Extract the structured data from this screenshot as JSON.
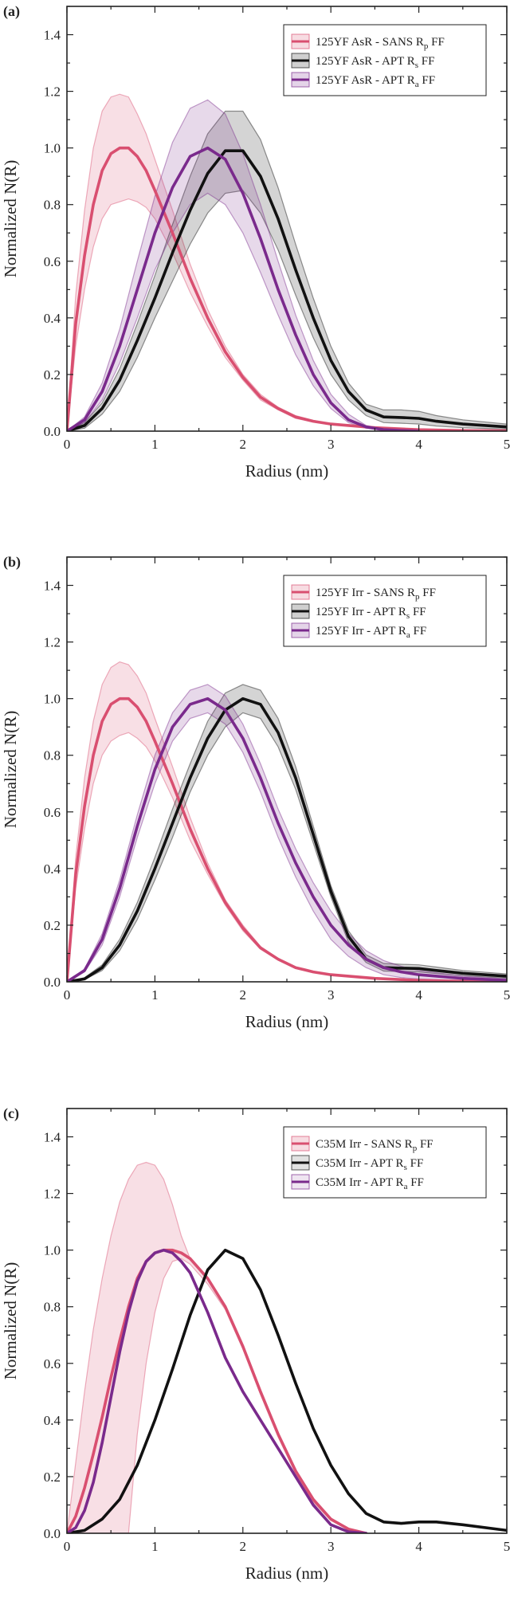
{
  "figure": {
    "panels": [
      "(a)",
      "(b)",
      "(c)"
    ]
  },
  "chart_data": [
    {
      "type": "line",
      "panel_label": "(a)",
      "xlabel": "Radius (nm)",
      "ylabel": "Normalized N(R)",
      "xlim": [
        0,
        5
      ],
      "ylim": [
        0,
        1.5
      ],
      "x_ticks": [
        "0",
        "1",
        "2",
        "3",
        "4",
        "5"
      ],
      "y_ticks": [
        "0.0",
        "0.2",
        "0.4",
        "0.6",
        "0.8",
        "1.0",
        "1.2",
        "1.4"
      ],
      "legend_position": "top-right",
      "series": [
        {
          "name": "125YF AsR - SANS R",
          "name_sub": "p",
          "name_suffix": " FF",
          "color": "#d94f70",
          "x": [
            0,
            0.1,
            0.2,
            0.3,
            0.4,
            0.5,
            0.6,
            0.7,
            0.8,
            0.9,
            1.0,
            1.2,
            1.4,
            1.6,
            1.8,
            2.0,
            2.2,
            2.4,
            2.6,
            2.8,
            3.0,
            3.5,
            4.0,
            4.5,
            5.0
          ],
          "y": [
            0.0,
            0.38,
            0.62,
            0.8,
            0.92,
            0.98,
            1.0,
            1.0,
            0.97,
            0.92,
            0.85,
            0.7,
            0.54,
            0.4,
            0.28,
            0.19,
            0.12,
            0.08,
            0.05,
            0.035,
            0.025,
            0.012,
            0.005,
            0.002,
            0.001
          ],
          "band_upper": [
            0.0,
            0.48,
            0.78,
            1.0,
            1.13,
            1.18,
            1.19,
            1.18,
            1.12,
            1.05,
            0.96,
            0.78,
            0.59,
            0.43,
            0.3,
            0.2,
            0.13,
            0.085,
            0.055,
            0.038,
            0.027,
            0.013,
            0.006,
            0.002,
            0.001
          ],
          "band_lower": [
            0.0,
            0.3,
            0.5,
            0.65,
            0.75,
            0.8,
            0.81,
            0.82,
            0.81,
            0.79,
            0.75,
            0.63,
            0.49,
            0.37,
            0.26,
            0.18,
            0.11,
            0.075,
            0.045,
            0.032,
            0.023,
            0.011,
            0.004,
            0.001,
            0.0
          ]
        },
        {
          "name": "125YF AsR - APT R",
          "name_sub": "s",
          "name_suffix": " FF",
          "color": "#111111",
          "x": [
            0,
            0.2,
            0.4,
            0.6,
            0.8,
            1.0,
            1.2,
            1.4,
            1.6,
            1.8,
            2.0,
            2.2,
            2.4,
            2.6,
            2.8,
            3.0,
            3.2,
            3.4,
            3.6,
            3.8,
            4.0,
            4.2,
            4.5,
            5.0
          ],
          "y": [
            0.0,
            0.02,
            0.08,
            0.18,
            0.32,
            0.47,
            0.63,
            0.78,
            0.91,
            0.99,
            0.99,
            0.9,
            0.75,
            0.57,
            0.4,
            0.25,
            0.14,
            0.075,
            0.05,
            0.048,
            0.045,
            0.035,
            0.025,
            0.015
          ],
          "band_upper": [
            0.0,
            0.03,
            0.1,
            0.22,
            0.38,
            0.55,
            0.73,
            0.9,
            1.05,
            1.13,
            1.13,
            1.03,
            0.86,
            0.66,
            0.47,
            0.3,
            0.17,
            0.095,
            0.075,
            0.075,
            0.07,
            0.055,
            0.04,
            0.025
          ],
          "band_lower": [
            0.0,
            0.01,
            0.06,
            0.14,
            0.26,
            0.4,
            0.53,
            0.66,
            0.77,
            0.84,
            0.85,
            0.77,
            0.64,
            0.48,
            0.33,
            0.2,
            0.11,
            0.055,
            0.03,
            0.028,
            0.025,
            0.018,
            0.012,
            0.007
          ]
        },
        {
          "name": "125YF AsR - APT R",
          "name_sub": "a",
          "name_suffix": " FF",
          "color": "#7a2a8c",
          "x": [
            0,
            0.2,
            0.4,
            0.6,
            0.8,
            1.0,
            1.2,
            1.4,
            1.6,
            1.8,
            2.0,
            2.2,
            2.4,
            2.6,
            2.8,
            3.0,
            3.2,
            3.4,
            3.6,
            3.8,
            4.0
          ],
          "y": [
            0.0,
            0.04,
            0.14,
            0.3,
            0.5,
            0.7,
            0.86,
            0.97,
            1.0,
            0.96,
            0.84,
            0.68,
            0.5,
            0.34,
            0.2,
            0.1,
            0.04,
            0.015,
            0.005,
            0.002,
            0.0
          ],
          "band_upper": [
            0.0,
            0.05,
            0.17,
            0.36,
            0.6,
            0.83,
            1.02,
            1.14,
            1.17,
            1.12,
            0.98,
            0.8,
            0.6,
            0.41,
            0.25,
            0.13,
            0.06,
            0.02,
            0.008,
            0.003,
            0.001
          ],
          "band_lower": [
            0.0,
            0.03,
            0.11,
            0.24,
            0.4,
            0.57,
            0.7,
            0.8,
            0.84,
            0.8,
            0.7,
            0.56,
            0.41,
            0.27,
            0.16,
            0.08,
            0.03,
            0.01,
            0.003,
            0.001,
            0.0
          ]
        }
      ]
    },
    {
      "type": "line",
      "panel_label": "(b)",
      "xlabel": "Radius (nm)",
      "ylabel": "Normalized N(R)",
      "xlim": [
        0,
        5
      ],
      "ylim": [
        0,
        1.5
      ],
      "x_ticks": [
        "0",
        "1",
        "2",
        "3",
        "4",
        "5"
      ],
      "y_ticks": [
        "0.0",
        "0.2",
        "0.4",
        "0.6",
        "0.8",
        "1.0",
        "1.2",
        "1.4"
      ],
      "legend_position": "top-right",
      "series": [
        {
          "name": "125YF Irr - SANS R",
          "name_sub": "p",
          "name_suffix": " FF",
          "color": "#d94f70",
          "x": [
            0,
            0.1,
            0.2,
            0.3,
            0.4,
            0.5,
            0.6,
            0.7,
            0.8,
            0.9,
            1.0,
            1.2,
            1.4,
            1.6,
            1.8,
            2.0,
            2.2,
            2.4,
            2.6,
            2.8,
            3.0,
            3.5,
            4.0,
            4.5,
            5.0
          ],
          "y": [
            0.0,
            0.38,
            0.62,
            0.8,
            0.92,
            0.98,
            1.0,
            1.0,
            0.97,
            0.92,
            0.85,
            0.7,
            0.54,
            0.4,
            0.28,
            0.19,
            0.12,
            0.08,
            0.05,
            0.035,
            0.025,
            0.012,
            0.005,
            0.002,
            0.001
          ],
          "band_upper": [
            0.0,
            0.44,
            0.72,
            0.92,
            1.05,
            1.11,
            1.13,
            1.12,
            1.08,
            1.02,
            0.93,
            0.76,
            0.58,
            0.42,
            0.29,
            0.2,
            0.125,
            0.083,
            0.052,
            0.036,
            0.026,
            0.012,
            0.005,
            0.002,
            0.001
          ],
          "band_lower": [
            0.0,
            0.33,
            0.54,
            0.7,
            0.8,
            0.85,
            0.87,
            0.88,
            0.86,
            0.83,
            0.78,
            0.65,
            0.5,
            0.38,
            0.27,
            0.18,
            0.115,
            0.077,
            0.048,
            0.034,
            0.024,
            0.011,
            0.005,
            0.002,
            0.0
          ]
        },
        {
          "name": "125YF Irr - APT R",
          "name_sub": "s",
          "name_suffix": " FF",
          "color": "#111111",
          "x": [
            0,
            0.2,
            0.4,
            0.6,
            0.8,
            1.0,
            1.2,
            1.4,
            1.6,
            1.8,
            2.0,
            2.2,
            2.4,
            2.6,
            2.8,
            3.0,
            3.2,
            3.4,
            3.6,
            3.8,
            4.0,
            4.2,
            4.5,
            5.0
          ],
          "y": [
            0.0,
            0.01,
            0.05,
            0.13,
            0.25,
            0.4,
            0.56,
            0.72,
            0.86,
            0.96,
            1.0,
            0.98,
            0.88,
            0.72,
            0.52,
            0.32,
            0.16,
            0.08,
            0.05,
            0.048,
            0.047,
            0.04,
            0.03,
            0.02
          ],
          "band_upper": [
            0.0,
            0.015,
            0.06,
            0.15,
            0.28,
            0.44,
            0.61,
            0.77,
            0.92,
            1.02,
            1.05,
            1.03,
            0.93,
            0.76,
            0.55,
            0.34,
            0.18,
            0.095,
            0.065,
            0.062,
            0.06,
            0.052,
            0.04,
            0.028
          ],
          "band_lower": [
            0.0,
            0.008,
            0.04,
            0.11,
            0.22,
            0.36,
            0.51,
            0.67,
            0.8,
            0.9,
            0.95,
            0.93,
            0.83,
            0.68,
            0.49,
            0.3,
            0.14,
            0.068,
            0.038,
            0.036,
            0.035,
            0.029,
            0.021,
            0.013
          ]
        },
        {
          "name": "125YF Irr - APT R",
          "name_sub": "a",
          "name_suffix": " FF",
          "color": "#7a2a8c",
          "x": [
            0,
            0.2,
            0.4,
            0.6,
            0.8,
            1.0,
            1.2,
            1.4,
            1.6,
            1.8,
            2.0,
            2.2,
            2.4,
            2.6,
            2.8,
            3.0,
            3.2,
            3.4,
            3.6,
            3.8,
            4.0,
            4.5,
            5.0
          ],
          "y": [
            0.0,
            0.04,
            0.15,
            0.33,
            0.55,
            0.75,
            0.9,
            0.98,
            1.0,
            0.96,
            0.86,
            0.72,
            0.56,
            0.42,
            0.3,
            0.2,
            0.13,
            0.08,
            0.05,
            0.035,
            0.025,
            0.012,
            0.005
          ],
          "band_upper": [
            0.0,
            0.045,
            0.17,
            0.36,
            0.59,
            0.8,
            0.95,
            1.03,
            1.05,
            1.01,
            0.91,
            0.77,
            0.61,
            0.47,
            0.35,
            0.25,
            0.17,
            0.11,
            0.075,
            0.055,
            0.04,
            0.02,
            0.01
          ],
          "band_lower": [
            0.0,
            0.035,
            0.13,
            0.3,
            0.51,
            0.7,
            0.85,
            0.93,
            0.95,
            0.91,
            0.81,
            0.67,
            0.51,
            0.37,
            0.25,
            0.15,
            0.09,
            0.05,
            0.025,
            0.015,
            0.01,
            0.004,
            0.001
          ]
        }
      ]
    },
    {
      "type": "line",
      "panel_label": "(c)",
      "xlabel": "Radius (nm)",
      "ylabel": "Normalized N(R)",
      "xlim": [
        0,
        5
      ],
      "ylim": [
        0,
        1.5
      ],
      "x_ticks": [
        "0",
        "1",
        "2",
        "3",
        "4",
        "5"
      ],
      "y_ticks": [
        "0.0",
        "0.2",
        "0.4",
        "0.6",
        "0.8",
        "1.0",
        "1.2",
        "1.4"
      ],
      "legend_position": "top-right",
      "series": [
        {
          "name": "C35M Irr - SANS R",
          "name_sub": "p",
          "name_suffix": " FF",
          "color": "#d94f70",
          "x": [
            0,
            0.1,
            0.2,
            0.3,
            0.4,
            0.5,
            0.6,
            0.7,
            0.8,
            0.9,
            1.0,
            1.1,
            1.2,
            1.3,
            1.4,
            1.6,
            1.8,
            2.0,
            2.2,
            2.4,
            2.6,
            2.8,
            3.0,
            3.2,
            3.4
          ],
          "y": [
            0.0,
            0.06,
            0.16,
            0.28,
            0.41,
            0.55,
            0.68,
            0.8,
            0.9,
            0.96,
            0.99,
            1.0,
            1.0,
            0.99,
            0.97,
            0.9,
            0.8,
            0.66,
            0.5,
            0.35,
            0.22,
            0.12,
            0.05,
            0.015,
            0.0
          ],
          "band_upper": [
            0.0,
            0.25,
            0.5,
            0.72,
            0.9,
            1.05,
            1.17,
            1.25,
            1.3,
            1.31,
            1.3,
            1.25,
            1.16,
            1.05,
            0.97,
            0.9,
            0.8,
            0.66,
            0.5,
            0.35,
            0.22,
            0.12,
            0.05,
            0.015,
            0.0
          ],
          "band_lower": [
            0.0,
            0.0,
            0.0,
            0.0,
            0.0,
            0.0,
            0.0,
            0.0,
            0.35,
            0.6,
            0.78,
            0.9,
            0.96,
            0.97,
            0.95,
            0.88,
            0.79,
            0.65,
            0.49,
            0.34,
            0.21,
            0.11,
            0.045,
            0.012,
            0.0
          ]
        },
        {
          "name": "C35M Irr - APT R",
          "name_sub": "s",
          "name_suffix": " FF",
          "color": "#111111",
          "x": [
            0,
            0.2,
            0.4,
            0.6,
            0.8,
            1.0,
            1.2,
            1.4,
            1.6,
            1.8,
            2.0,
            2.2,
            2.4,
            2.6,
            2.8,
            3.0,
            3.2,
            3.4,
            3.6,
            3.8,
            4.0,
            4.2,
            4.5,
            5.0
          ],
          "y": [
            0.0,
            0.01,
            0.05,
            0.12,
            0.24,
            0.4,
            0.58,
            0.77,
            0.93,
            1.0,
            0.97,
            0.86,
            0.7,
            0.53,
            0.37,
            0.24,
            0.14,
            0.07,
            0.04,
            0.035,
            0.04,
            0.04,
            0.03,
            0.01
          ]
        },
        {
          "name": "C35M Irr - APT R",
          "name_sub": "a",
          "name_suffix": " FF",
          "color": "#7a2a8c",
          "x": [
            0,
            0.1,
            0.2,
            0.3,
            0.4,
            0.5,
            0.6,
            0.7,
            0.8,
            0.9,
            1.0,
            1.1,
            1.2,
            1.3,
            1.4,
            1.6,
            1.8,
            2.0,
            2.2,
            2.4,
            2.6,
            2.8,
            3.0,
            3.2,
            3.4
          ],
          "y": [
            0.0,
            0.02,
            0.08,
            0.18,
            0.32,
            0.48,
            0.64,
            0.78,
            0.89,
            0.96,
            0.99,
            1.0,
            0.99,
            0.96,
            0.92,
            0.78,
            0.62,
            0.5,
            0.4,
            0.3,
            0.2,
            0.1,
            0.03,
            0.005,
            0.0
          ]
        }
      ]
    }
  ]
}
